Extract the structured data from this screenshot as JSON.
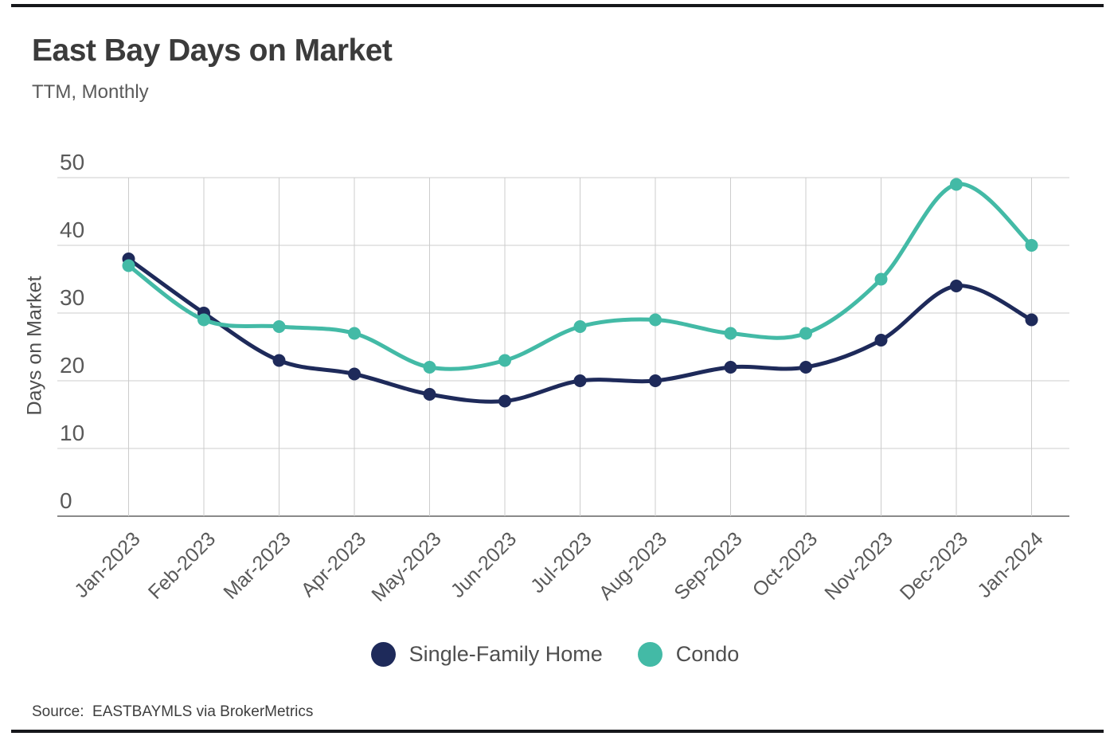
{
  "chart_data": {
    "type": "line",
    "title": "East Bay Days on Market",
    "subtitle": "TTM, Monthly",
    "categories": [
      "Jan-2023",
      "Feb-2023",
      "Mar-2023",
      "Apr-2023",
      "May-2023",
      "Jun-2023",
      "Jul-2023",
      "Aug-2023",
      "Sep-2023",
      "Oct-2023",
      "Nov-2023",
      "Dec-2023",
      "Jan-2024"
    ],
    "series": [
      {
        "name": "Single-Family Home",
        "color": "#1e2a5a",
        "values": [
          38,
          30,
          23,
          21,
          18,
          17,
          20,
          20,
          22,
          22,
          26,
          34,
          29
        ]
      },
      {
        "name": "Condo",
        "color": "#43baa6",
        "values": [
          37,
          29,
          28,
          27,
          22,
          23,
          28,
          29,
          27,
          27,
          35,
          49,
          40
        ]
      }
    ],
    "xlabel": "",
    "ylabel": "Days on Market",
    "ylim": [
      0,
      50
    ],
    "yticks": [
      0,
      10,
      20,
      30,
      40,
      50
    ],
    "grid": true,
    "legend_position": "bottom"
  },
  "footer": {
    "source": "Source:  EASTBAYMLS via BrokerMetrics"
  },
  "style": {
    "grid_color": "#cccccc",
    "axis_color": "#8a8a8a",
    "tick_color": "#595959",
    "rule_color": "#16171b"
  }
}
